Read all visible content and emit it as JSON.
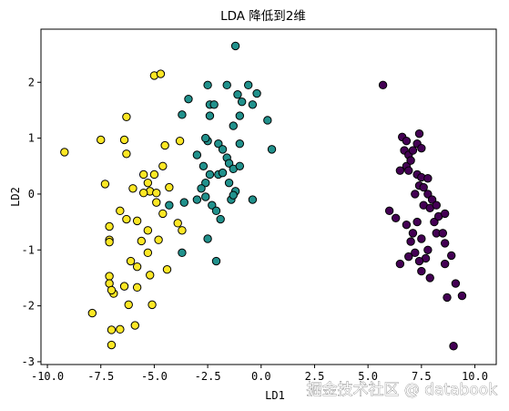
{
  "watermark": "掘金技术社区 @ databook",
  "chart_data": {
    "type": "scatter",
    "title": "LDA 降低到2维",
    "xlabel": "LD1",
    "ylabel": "LD2",
    "xlim": [
      -10.3,
      11.0
    ],
    "ylim": [
      -3.05,
      2.95
    ],
    "xticks": [
      -10.0,
      -7.5,
      -5.0,
      -2.5,
      0.0,
      2.5,
      5.0,
      7.5,
      10.0
    ],
    "xtick_labels": [
      "-10.0",
      "-7.5",
      "-5.0",
      "-2.5",
      "0.0",
      "2.5",
      "5.0",
      "7.5",
      "10.0"
    ],
    "yticks": [
      -3,
      -2,
      -1,
      0,
      1,
      2
    ],
    "ytick_labels": [
      "-3",
      "-2",
      "-1",
      "0",
      "1",
      "2"
    ],
    "grid": false,
    "legend": "none",
    "series": [
      {
        "color": "#440154",
        "points": [
          [
            5.7,
            1.95
          ],
          [
            6.6,
            1.02
          ],
          [
            6.8,
            0.95
          ],
          [
            6.7,
            0.78
          ],
          [
            6.9,
            0.7
          ],
          [
            7.1,
            0.78
          ],
          [
            7.3,
            0.9
          ],
          [
            7.4,
            1.08
          ],
          [
            7.5,
            0.82
          ],
          [
            6.8,
            0.5
          ],
          [
            6.9,
            0.42
          ],
          [
            6.5,
            0.42
          ],
          [
            7.0,
            0.6
          ],
          [
            7.3,
            0.35
          ],
          [
            7.5,
            0.3
          ],
          [
            7.8,
            0.28
          ],
          [
            7.4,
            0.15
          ],
          [
            7.6,
            0.12
          ],
          [
            7.8,
            0.0
          ],
          [
            8.0,
            -0.1
          ],
          [
            7.6,
            -0.2
          ],
          [
            7.9,
            -0.25
          ],
          [
            7.3,
            -0.5
          ],
          [
            8.1,
            -0.5
          ],
          [
            8.3,
            -0.4
          ],
          [
            8.6,
            -0.35
          ],
          [
            8.2,
            -0.7
          ],
          [
            8.5,
            -0.7
          ],
          [
            8.6,
            -0.88
          ],
          [
            6.3,
            -0.43
          ],
          [
            6.8,
            -0.55
          ],
          [
            7.1,
            -0.7
          ],
          [
            7.5,
            -0.8
          ],
          [
            7.0,
            -0.85
          ],
          [
            7.8,
            -1.0
          ],
          [
            7.2,
            -1.05
          ],
          [
            8.9,
            -1.1
          ],
          [
            7.7,
            -1.15
          ],
          [
            7.4,
            -1.2
          ],
          [
            6.9,
            -1.12
          ],
          [
            6.5,
            -1.25
          ],
          [
            7.5,
            -1.38
          ],
          [
            7.9,
            -1.5
          ],
          [
            8.7,
            -1.85
          ],
          [
            9.4,
            -1.82
          ],
          [
            9.1,
            -1.6
          ],
          [
            8.6,
            -1.25
          ],
          [
            9.0,
            -2.72
          ],
          [
            7.2,
            0.0
          ],
          [
            8.2,
            -0.2
          ],
          [
            6.0,
            -0.3
          ]
        ]
      },
      {
        "color": "#21918c",
        "points": [
          [
            -1.2,
            2.65
          ],
          [
            -2.5,
            1.95
          ],
          [
            -0.6,
            1.95
          ],
          [
            -1.6,
            1.95
          ],
          [
            -0.2,
            1.8
          ],
          [
            -1.1,
            1.78
          ],
          [
            -0.9,
            1.65
          ],
          [
            -0.4,
            1.6
          ],
          [
            -2.4,
            1.6
          ],
          [
            -3.7,
            1.42
          ],
          [
            -3.4,
            1.7
          ],
          [
            -2.2,
            1.6
          ],
          [
            -1.0,
            1.4
          ],
          [
            -2.4,
            1.4
          ],
          [
            -1.3,
            1.22
          ],
          [
            0.3,
            1.32
          ],
          [
            -2.5,
            0.95
          ],
          [
            -2.0,
            0.9
          ],
          [
            -1.8,
            0.8
          ],
          [
            -2.6,
            1.0
          ],
          [
            -1.0,
            0.9
          ],
          [
            0.5,
            0.8
          ],
          [
            -1.6,
            0.65
          ],
          [
            -3.0,
            0.7
          ],
          [
            -1.5,
            0.55
          ],
          [
            -1.3,
            0.45
          ],
          [
            -2.0,
            0.35
          ],
          [
            -2.4,
            0.35
          ],
          [
            -1.0,
            0.5
          ],
          [
            -2.7,
            0.5
          ],
          [
            -2.6,
            0.2
          ],
          [
            -1.5,
            0.2
          ],
          [
            -2.8,
            0.1
          ],
          [
            -1.2,
            0.05
          ],
          [
            -2.6,
            -0.05
          ],
          [
            -3.0,
            -0.1
          ],
          [
            -1.4,
            -0.1
          ],
          [
            -1.3,
            -0.02
          ],
          [
            -0.4,
            -0.1
          ],
          [
            -3.6,
            -0.15
          ],
          [
            -2.3,
            -0.2
          ],
          [
            -2.1,
            -0.3
          ],
          [
            -1.9,
            -0.45
          ],
          [
            -4.3,
            -0.2
          ],
          [
            -2.5,
            -0.8
          ],
          [
            -3.7,
            -1.05
          ],
          [
            -2.1,
            -1.2
          ],
          [
            -1.8,
            0.38
          ]
        ]
      },
      {
        "color": "#fde725",
        "points": [
          [
            -5.0,
            2.12
          ],
          [
            -4.7,
            2.15
          ],
          [
            -6.3,
            1.38
          ],
          [
            -7.5,
            0.97
          ],
          [
            -6.4,
            0.97
          ],
          [
            -9.2,
            0.75
          ],
          [
            -6.3,
            0.72
          ],
          [
            -4.5,
            0.87
          ],
          [
            -3.8,
            0.95
          ],
          [
            -4.6,
            0.5
          ],
          [
            -5.5,
            0.35
          ],
          [
            -5.0,
            0.35
          ],
          [
            -5.3,
            0.2
          ],
          [
            -7.3,
            0.18
          ],
          [
            -4.3,
            0.12
          ],
          [
            -6.0,
            0.1
          ],
          [
            -5.2,
            0.05
          ],
          [
            -5.5,
            0.02
          ],
          [
            -4.9,
            0.02
          ],
          [
            -4.9,
            -0.15
          ],
          [
            -4.6,
            -0.35
          ],
          [
            -6.6,
            -0.3
          ],
          [
            -6.3,
            -0.45
          ],
          [
            -7.1,
            -0.58
          ],
          [
            -5.8,
            -0.48
          ],
          [
            -3.9,
            -0.52
          ],
          [
            -3.7,
            -0.65
          ],
          [
            -5.3,
            -0.65
          ],
          [
            -7.1,
            -0.82
          ],
          [
            -7.1,
            -0.86
          ],
          [
            -5.6,
            -0.84
          ],
          [
            -4.8,
            -0.82
          ],
          [
            -5.3,
            -1.05
          ],
          [
            -6.1,
            -1.2
          ],
          [
            -5.8,
            -1.3
          ],
          [
            -5.2,
            -1.45
          ],
          [
            -4.4,
            -1.35
          ],
          [
            -7.1,
            -1.47
          ],
          [
            -7.1,
            -1.6
          ],
          [
            -6.4,
            -1.65
          ],
          [
            -5.8,
            -1.67
          ],
          [
            -6.9,
            -1.78
          ],
          [
            -7.0,
            -1.72
          ],
          [
            -6.2,
            -1.98
          ],
          [
            -5.1,
            -1.98
          ],
          [
            -7.9,
            -2.13
          ],
          [
            -6.6,
            -2.42
          ],
          [
            -7.0,
            -2.43
          ],
          [
            -5.9,
            -2.35
          ],
          [
            -7.0,
            -2.7
          ]
        ]
      }
    ]
  }
}
